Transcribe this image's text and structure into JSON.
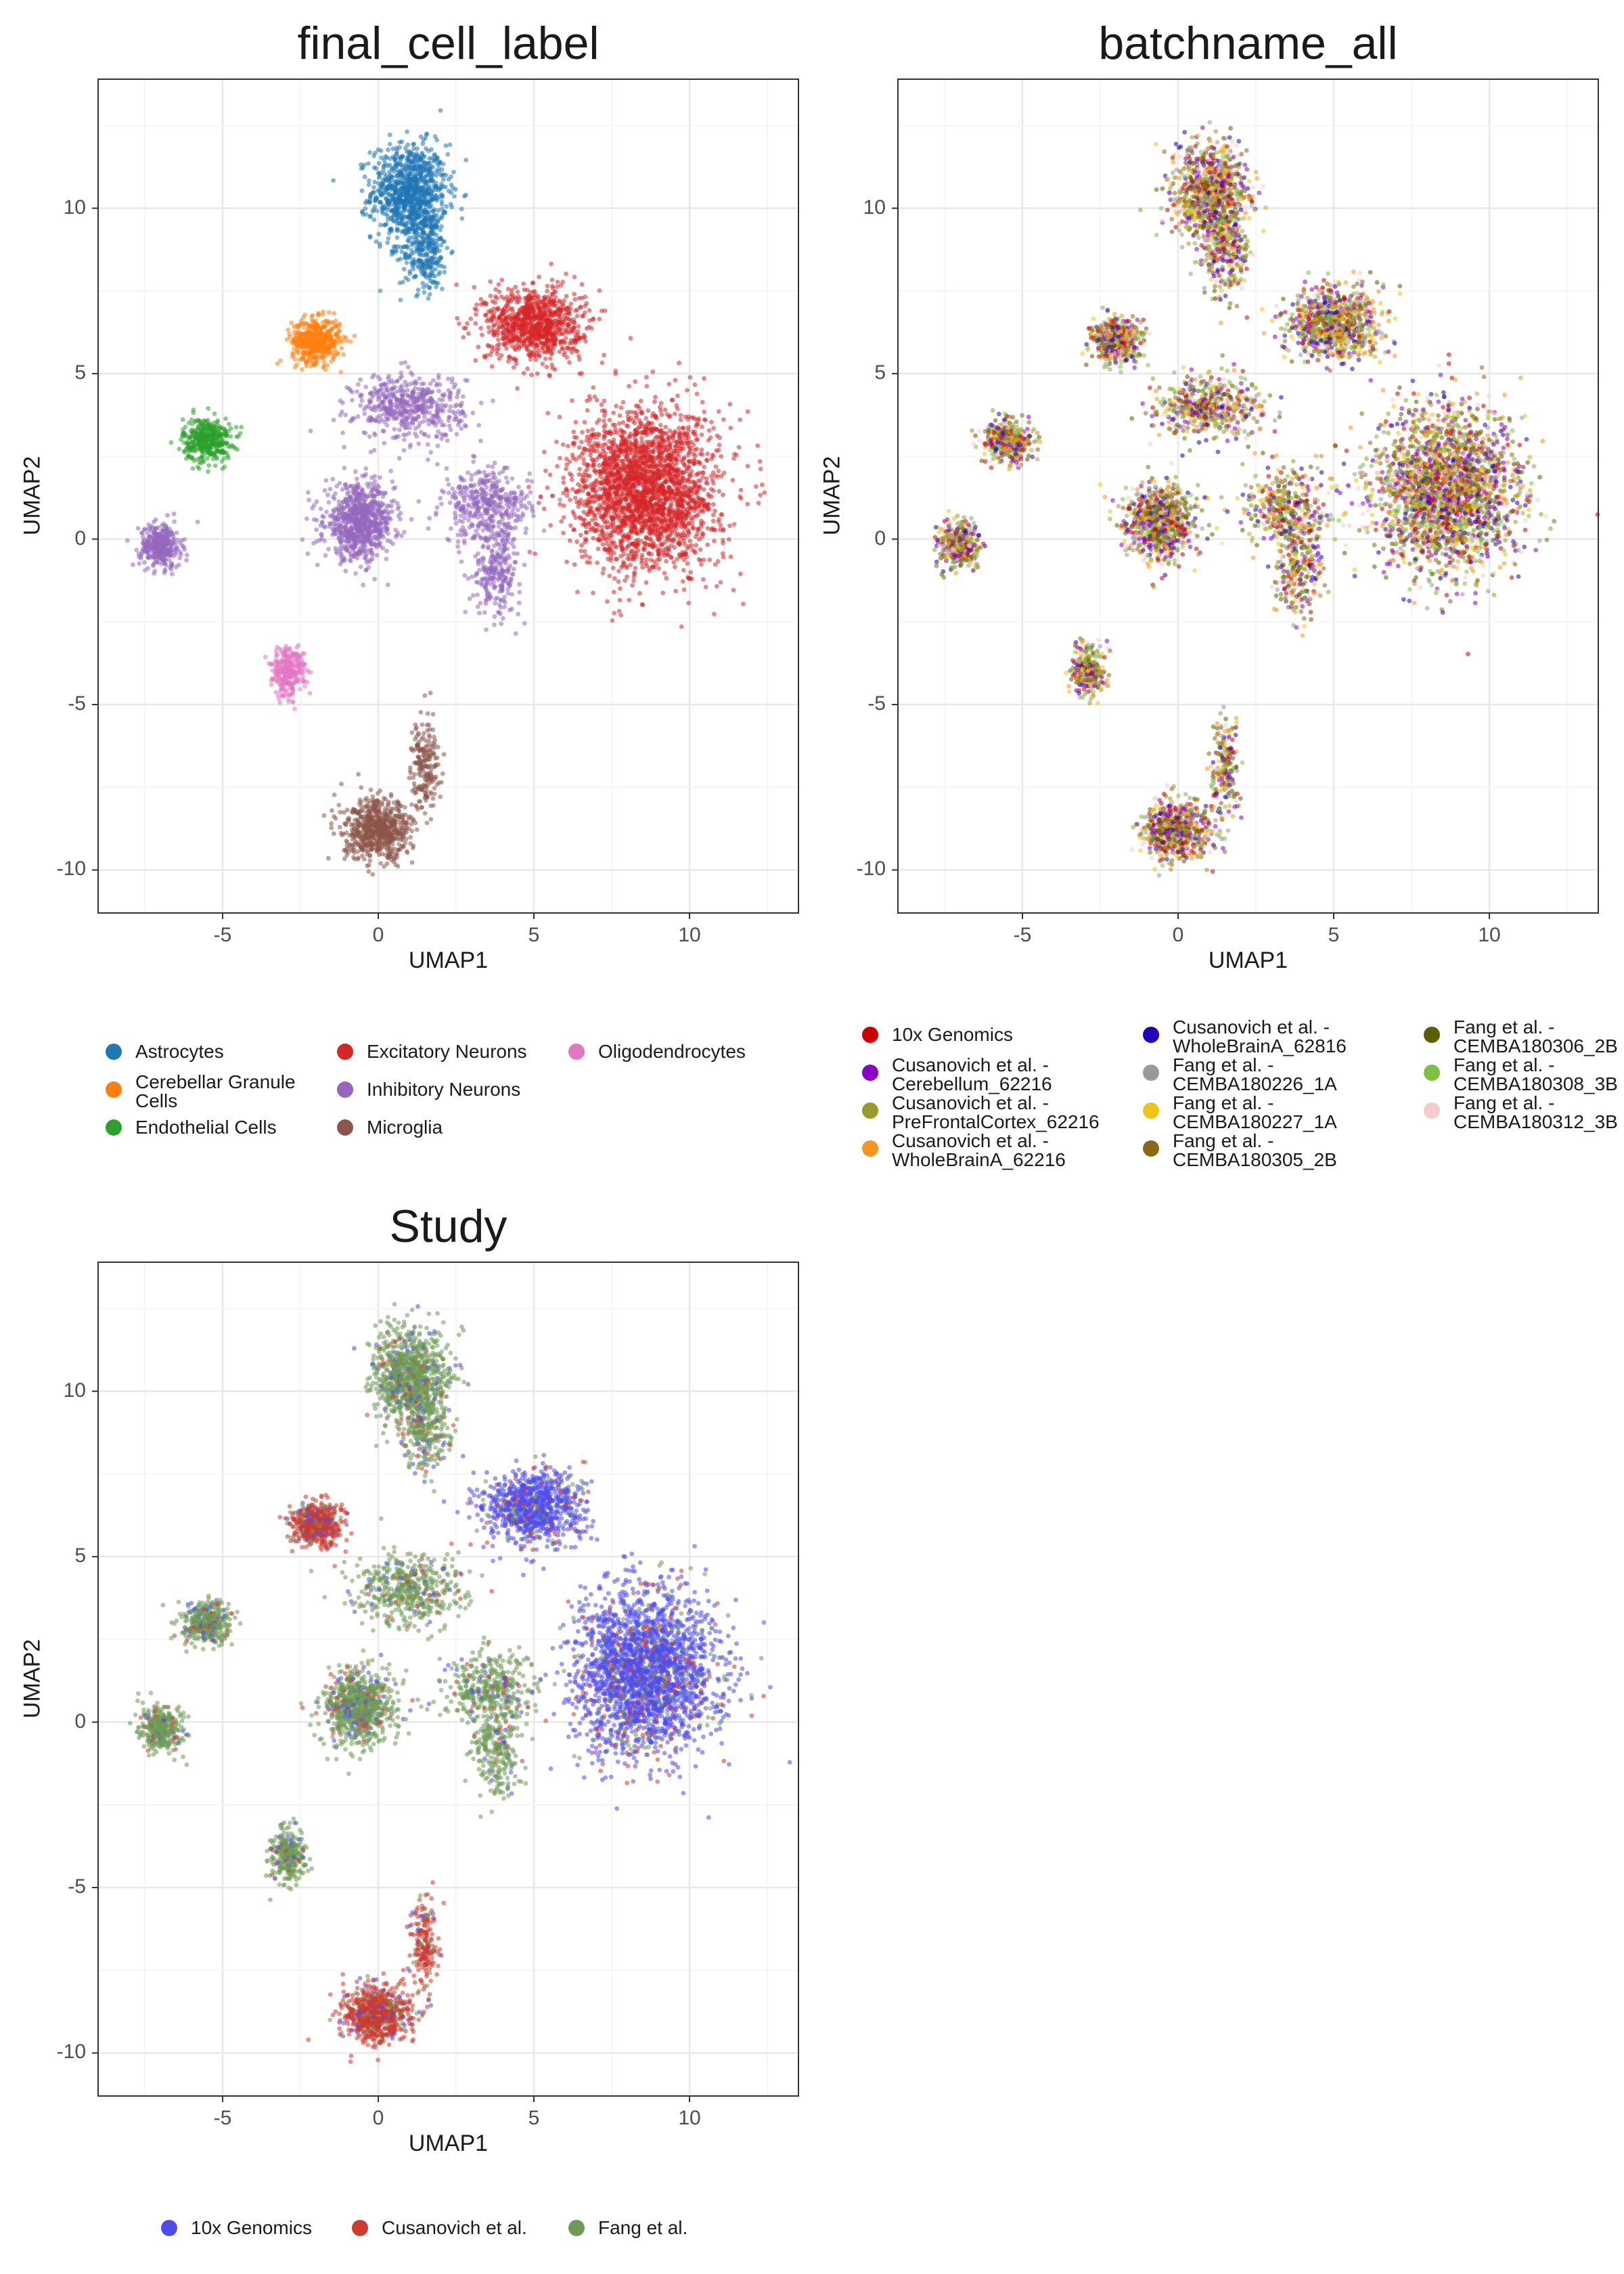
{
  "chart_data": [
    {
      "type": "scatter",
      "title": "final_cell_label",
      "xlabel": "UMAP1",
      "ylabel": "UMAP2",
      "xlim": [
        -9,
        13.5
      ],
      "ylim": [
        -11.3,
        13.9
      ],
      "xticks": [
        -5,
        0,
        5,
        10
      ],
      "yticks": [
        -10,
        -5,
        0,
        5,
        10
      ],
      "grid": true,
      "legend_position": "bottom",
      "series": [
        {
          "name": "Astrocytes",
          "color": "#1f77b4"
        },
        {
          "name": "Cerebellar Granule\nCells",
          "color": "#ff7f0e"
        },
        {
          "name": "Endothelial Cells",
          "color": "#2ca02c"
        },
        {
          "name": "Excitatory Neurons",
          "color": "#d62728"
        },
        {
          "name": "Inhibitory Neurons",
          "color": "#9467bd"
        },
        {
          "name": "Microglia",
          "color": "#8c564b"
        },
        {
          "name": "Oligodendrocytes",
          "color": "#e377c2"
        }
      ]
    },
    {
      "type": "scatter",
      "title": "batchname_all",
      "xlabel": "UMAP1",
      "ylabel": "UMAP2",
      "xlim": [
        -9,
        13.5
      ],
      "ylim": [
        -11.3,
        13.9
      ],
      "xticks": [
        -5,
        0,
        5,
        10
      ],
      "yticks": [
        -10,
        -5,
        0,
        5,
        10
      ],
      "grid": true,
      "legend_position": "bottom",
      "series": [
        {
          "name": "10x Genomics",
          "color": "#cc0000"
        },
        {
          "name": "Cusanovich et al. -\nCerebellum_62216",
          "color": "#8a00c8"
        },
        {
          "name": "Cusanovich et al. -\nPreFrontalCortex_62216",
          "color": "#9a9a28"
        },
        {
          "name": "Cusanovich et al. -\nWholeBrainA_62216",
          "color": "#f7941d"
        },
        {
          "name": "Cusanovich et al. -\nWholeBrainA_62816",
          "color": "#2200bb"
        },
        {
          "name": "Fang et al. -\nCEMBA180226_1A",
          "color": "#999999"
        },
        {
          "name": "Fang et al. -\nCEMBA180227_1A",
          "color": "#f0c419"
        },
        {
          "name": "Fang et al. -\nCEMBA180305_2B",
          "color": "#8b6914"
        },
        {
          "name": "Fang et al. -\nCEMBA180306_2B",
          "color": "#5c5c00"
        },
        {
          "name": "Fang et al. -\nCEMBA180308_3B",
          "color": "#7cc242"
        },
        {
          "name": "Fang et al. -\nCEMBA180312_3B",
          "color": "#f4cccc"
        }
      ]
    },
    {
      "type": "scatter",
      "title": "Study",
      "xlabel": "UMAP1",
      "ylabel": "UMAP2",
      "xlim": [
        -9,
        13.5
      ],
      "ylim": [
        -11.3,
        13.9
      ],
      "xticks": [
        -5,
        0,
        5,
        10
      ],
      "yticks": [
        -10,
        -5,
        0,
        5,
        10
      ],
      "grid": true,
      "legend_position": "bottom",
      "series": [
        {
          "name": "10x Genomics",
          "color": "#4c4cf0"
        },
        {
          "name": "Cusanovich et al.",
          "color": "#cc3b2e"
        },
        {
          "name": "Fang et al.",
          "color": "#6e9a56"
        }
      ]
    }
  ]
}
